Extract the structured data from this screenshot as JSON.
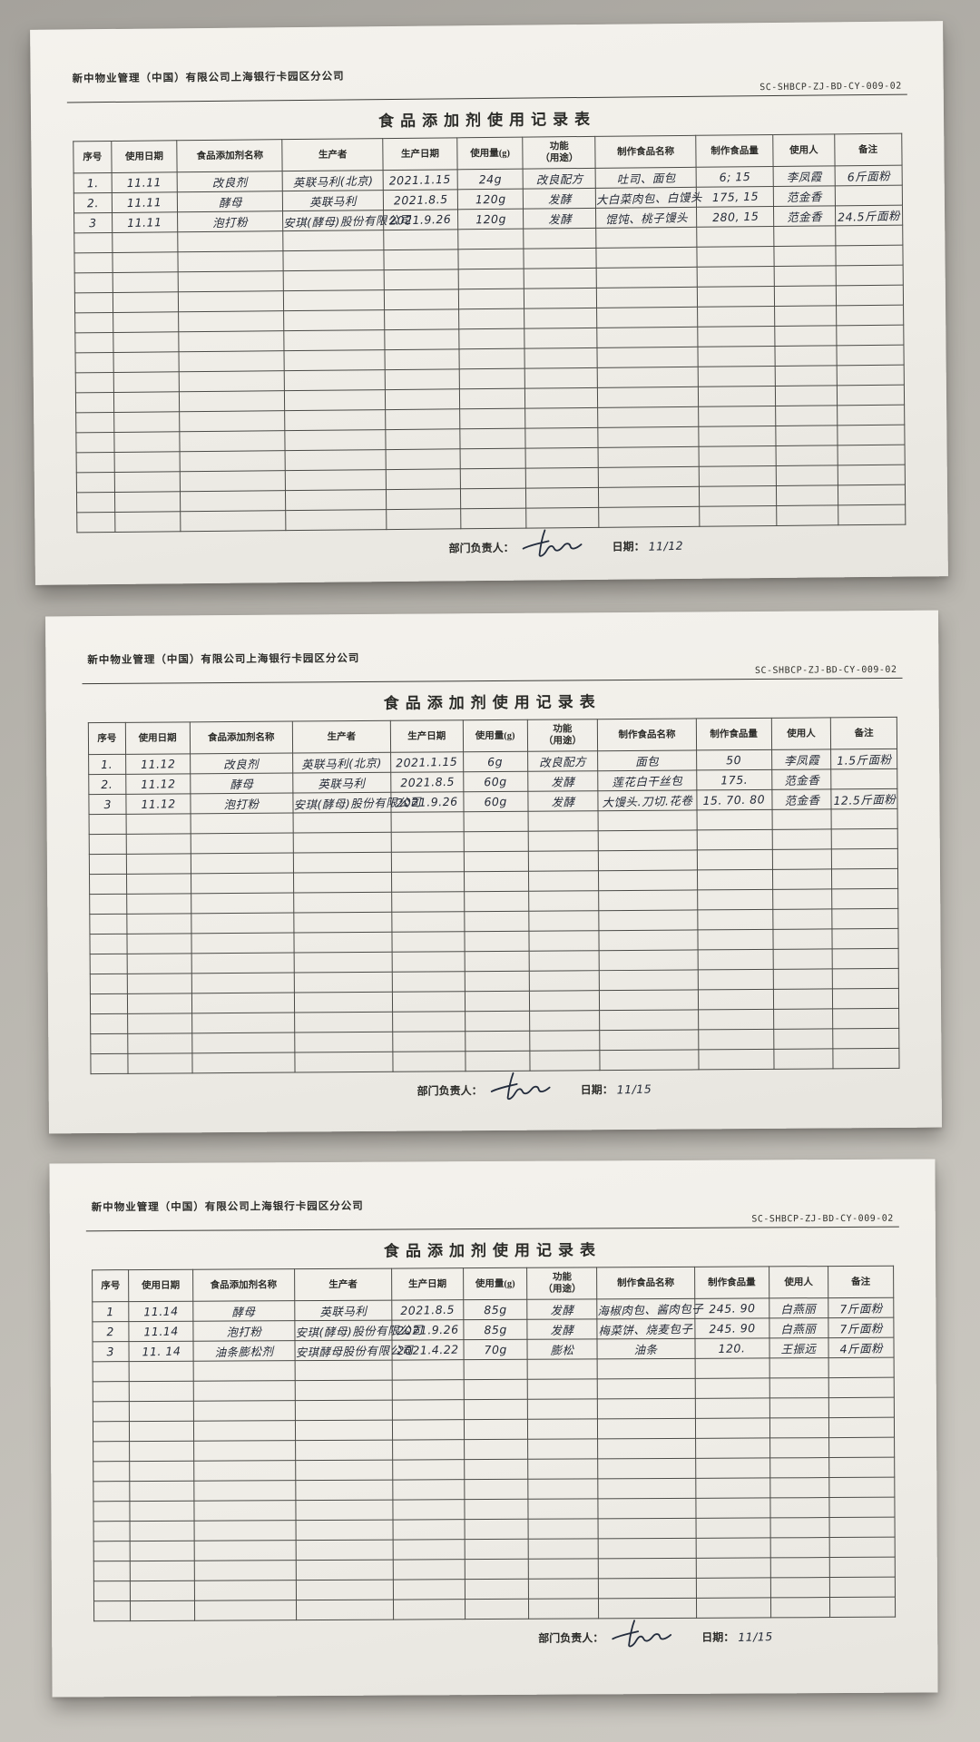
{
  "colors": {
    "photo_background": "#b6b3ac",
    "paper": "#f2f0ea",
    "print_ink": "#2b2b28",
    "hand_ink": "#252b38"
  },
  "doc": {
    "company": "新中物业管理（中国）有限公司上海银行卡园区分公司",
    "code": "SC-SHBCP-ZJ-BD-CY-009-02",
    "title": "食品添加剂使用记录表",
    "columns": [
      "序号",
      "使用日期",
      "食品添加剂名称",
      "生产者",
      "生产日期",
      "使用量(g)",
      "功能\n（用途）",
      "制作食品名称",
      "制作食品量",
      "使用人",
      "备注"
    ],
    "footer": {
      "manager_label": "部门负责人：",
      "date_label": "日期："
    }
  },
  "pages": [
    {
      "sign_date": "11/12",
      "empty_rows": 15,
      "rows": [
        [
          "1.",
          "11.11",
          "改良剂",
          "英联马利(北京)",
          "2021.1.15",
          "24g",
          "改良配方",
          "吐司、面包",
          "6; 15",
          "李凤霞",
          "6斤面粉"
        ],
        [
          "2.",
          "11.11",
          "酵母",
          "英联马利",
          "2021.8.5",
          "120g",
          "发酵",
          "大白菜肉包、白馒头",
          "175, 15",
          "范金香",
          ""
        ],
        [
          "3",
          "11.11",
          "泡打粉",
          "安琪(酵母)股份有限公司",
          "2021.9.26",
          "120g",
          "发酵",
          "馄饨、桃子馒头",
          "280, 15",
          "范金香",
          "24.5斤面粉"
        ]
      ]
    },
    {
      "sign_date": "11/15",
      "empty_rows": 13,
      "rows": [
        [
          "1.",
          "11.12",
          "改良剂",
          "英联马利(北京)",
          "2021.1.15",
          "6g",
          "改良配方",
          "面包",
          "50",
          "李凤霞",
          "1.5斤面粉"
        ],
        [
          "2.",
          "11.12",
          "酵母",
          "英联马利",
          "2021.8.5",
          "60g",
          "发酵",
          "莲花白干丝包",
          "175.",
          "范金香",
          ""
        ],
        [
          "3",
          "11.12",
          "泡打粉",
          "安琪(酵母)股份有限公司",
          "2021.9.26",
          "60g",
          "发酵",
          "大馒头.刀切.花卷",
          "15. 70. 80",
          "范金香",
          "12.5斤面粉"
        ]
      ]
    },
    {
      "sign_date": "11/15",
      "empty_rows": 13,
      "rows": [
        [
          "1",
          "11.14",
          "酵母",
          "英联马利",
          "2021.8.5",
          "85g",
          "发酵",
          "海椒肉包、酱肉包子",
          "245. 90",
          "白燕丽",
          "7斤面粉"
        ],
        [
          "2",
          "11.14",
          "泡打粉",
          "安琪(酵母)股份有限公司",
          "2021.9.26",
          "85g",
          "发酵",
          "梅菜饼、烧麦包子",
          "245. 90",
          "白燕丽",
          "7斤面粉"
        ],
        [
          "3",
          "11. 14",
          "油条膨松剂",
          "安琪酵母股份有限公司",
          "2021.4.22",
          "70g",
          "膨松",
          "油条",
          "120.",
          "王振远",
          "4斤面粉"
        ]
      ]
    }
  ]
}
